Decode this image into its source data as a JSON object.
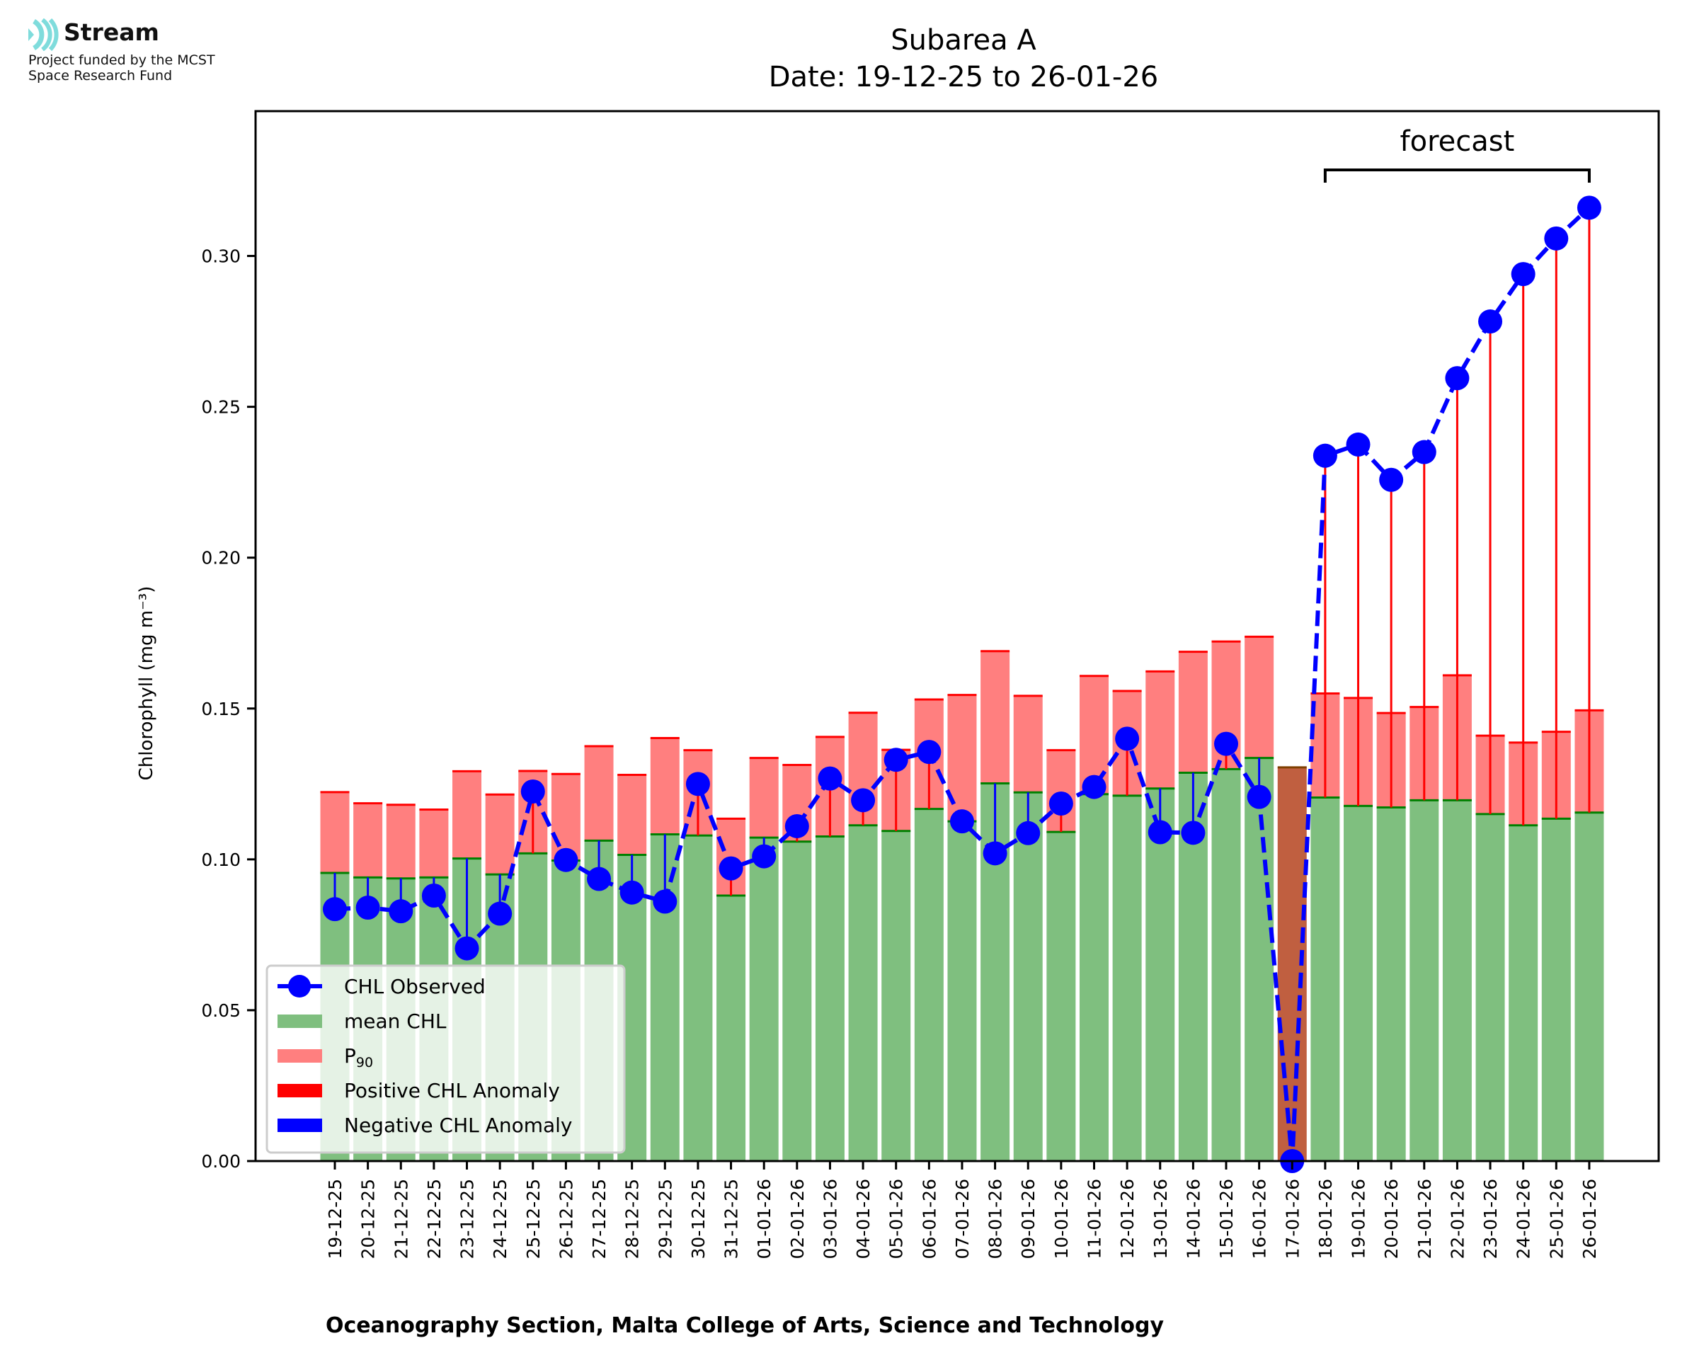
{
  "logo": {
    "brand": "Stream",
    "line1": "Project funded by the MCST",
    "line2": "Space Research Fund",
    "icon": "stream-waves-icon",
    "icon_color": "#7fdcdc"
  },
  "chart_data": {
    "type": "bar",
    "title": "Subarea A",
    "subtitle": "Date: 19-12-25 to 26-01-26",
    "xlabel": "Oceanography Section, Malta College of Arts, Science and Technology",
    "ylabel": "Chlorophyll (mg m⁻³)",
    "ylim": [
      0,
      0.348
    ],
    "yticks": [
      "0.00",
      "0.05",
      "0.10",
      "0.15",
      "0.20",
      "0.25",
      "0.30"
    ],
    "ytick_values": [
      0,
      0.05,
      0.1,
      0.15,
      0.2,
      0.25,
      0.3
    ],
    "annotation": {
      "text": "forecast",
      "from": "18-01-26",
      "to": "26-01-26"
    },
    "legend": {
      "placement": "lower-left",
      "entries": [
        {
          "label": "CHL Observed",
          "kind": "line-marker",
          "color": "#0000ff"
        },
        {
          "label": "mean CHL",
          "kind": "patch",
          "color": "#7fbf7f"
        },
        {
          "label": "P",
          "sub": "90",
          "kind": "patch",
          "color": "#ff7f7f"
        },
        {
          "label": "Positive CHL Anomaly",
          "kind": "patch",
          "color": "#ff0000"
        },
        {
          "label": "Negative CHL Anomaly",
          "kind": "patch",
          "color": "#0000ff"
        }
      ]
    },
    "colors": {
      "mean": "#7fbf7f",
      "mean_edge": "#008000",
      "p90": "#ff7f7f",
      "p90_edge": "#ff0000",
      "observed": "#0000ff",
      "positive_anomaly": "#ff0000",
      "negative_anomaly": "#0000ff",
      "missing_bar": "#c05f40",
      "missing_edge": "#7f3f00"
    },
    "categories": [
      "19-12-25",
      "20-12-25",
      "21-12-25",
      "22-12-25",
      "23-12-25",
      "24-12-25",
      "25-12-25",
      "26-12-25",
      "27-12-25",
      "28-12-25",
      "29-12-25",
      "30-12-25",
      "31-12-25",
      "01-01-26",
      "02-01-26",
      "03-01-26",
      "04-01-26",
      "05-01-26",
      "06-01-26",
      "07-01-26",
      "08-01-26",
      "09-01-26",
      "10-01-26",
      "11-01-26",
      "12-01-26",
      "13-01-26",
      "14-01-26",
      "15-01-26",
      "16-01-26",
      "17-01-26",
      "18-01-26",
      "19-01-26",
      "20-01-26",
      "21-01-26",
      "22-01-26",
      "23-01-26",
      "24-01-26",
      "25-01-26",
      "26-01-26"
    ],
    "series": [
      {
        "name": "mean CHL",
        "values": [
          0.0955,
          0.094,
          0.0937,
          0.094,
          0.1003,
          0.095,
          0.102,
          0.0996,
          0.1062,
          0.1015,
          0.1083,
          0.1079,
          0.088,
          0.1072,
          0.1059,
          0.1076,
          0.1113,
          0.1094,
          0.1167,
          0.1126,
          0.1252,
          0.1222,
          0.1091,
          0.1216,
          0.1211,
          0.1235,
          0.1287,
          0.1299,
          0.1336,
          0.1305,
          0.1205,
          0.1177,
          0.1172,
          0.1196,
          0.1196,
          0.115,
          0.1113,
          0.1135,
          0.1155
        ]
      },
      {
        "name": "P90",
        "values": [
          0.1223,
          0.1186,
          0.1181,
          0.1165,
          0.1292,
          0.1215,
          0.1293,
          0.1283,
          0.1375,
          0.128,
          0.1402,
          0.1362,
          0.1135,
          0.1336,
          0.1313,
          0.1406,
          0.1486,
          0.1363,
          0.153,
          0.1545,
          0.169,
          0.1542,
          0.1362,
          0.1608,
          0.1558,
          0.1623,
          0.1688,
          0.1722,
          0.1738,
          null,
          0.155,
          0.1535,
          0.1485,
          0.1505,
          0.161,
          0.141,
          0.1387,
          0.1423,
          0.1494
        ]
      },
      {
        "name": "CHL Observed",
        "values": [
          0.0835,
          0.084,
          0.0828,
          0.088,
          0.0705,
          0.082,
          0.1225,
          0.0998,
          0.0935,
          0.089,
          0.086,
          0.125,
          0.097,
          0.101,
          0.111,
          0.1268,
          0.1196,
          0.133,
          0.1356,
          0.1126,
          0.102,
          0.1087,
          0.1185,
          0.124,
          0.14,
          0.109,
          0.1088,
          0.1383,
          0.1207,
          0.0,
          0.2338,
          0.2375,
          0.2258,
          0.235,
          0.2595,
          0.2783,
          0.294,
          0.3058,
          0.316
        ]
      }
    ],
    "missing_bar": {
      "category": "17-01-26",
      "value": 0.1305
    },
    "forecast_start_index": 30
  }
}
